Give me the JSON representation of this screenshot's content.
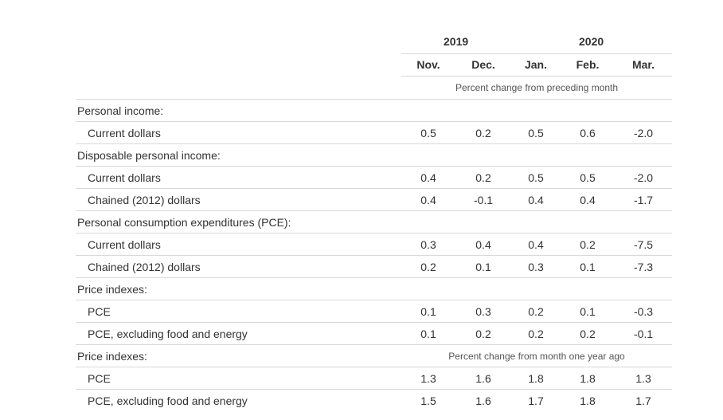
{
  "header": {
    "years": [
      "2019",
      "2020"
    ],
    "months": [
      "Nov.",
      "Dec.",
      "Jan.",
      "Feb.",
      "Mar."
    ],
    "note_monthly": "Percent change from preceding month",
    "note_yearly": "Percent change from month one year ago"
  },
  "rows": [
    {
      "label": "Personal income:",
      "type": "section",
      "values": []
    },
    {
      "label": "Current dollars",
      "type": "data",
      "values": [
        "0.5",
        "0.2",
        "0.5",
        "0.6",
        "-2.0"
      ]
    },
    {
      "label": "Disposable personal income:",
      "type": "section",
      "values": []
    },
    {
      "label": "Current dollars",
      "type": "data",
      "values": [
        "0.4",
        "0.2",
        "0.5",
        "0.5",
        "-2.0"
      ]
    },
    {
      "label": "Chained (2012) dollars",
      "type": "data",
      "values": [
        "0.4",
        "-0.1",
        "0.4",
        "0.4",
        "-1.7"
      ]
    },
    {
      "label": "Personal consumption expenditures (PCE):",
      "type": "section",
      "values": []
    },
    {
      "label": "Current dollars",
      "type": "data",
      "values": [
        "0.3",
        "0.4",
        "0.4",
        "0.2",
        "-7.5"
      ]
    },
    {
      "label": "Chained (2012) dollars",
      "type": "data",
      "values": [
        "0.2",
        "0.1",
        "0.3",
        "0.1",
        "-7.3"
      ]
    },
    {
      "label": "Price indexes:",
      "type": "section",
      "values": []
    },
    {
      "label": "PCE",
      "type": "data",
      "values": [
        "0.1",
        "0.3",
        "0.2",
        "0.1",
        "-0.3"
      ]
    },
    {
      "label": "PCE, excluding food and energy",
      "type": "data",
      "values": [
        "0.1",
        "0.2",
        "0.2",
        "0.2",
        "-0.1"
      ]
    },
    {
      "label": "Price indexes:",
      "type": "section",
      "values": []
    },
    {
      "label": "PCE",
      "type": "data",
      "values": [
        "1.3",
        "1.6",
        "1.8",
        "1.8",
        "1.3"
      ]
    },
    {
      "label": "PCE, excluding food and energy",
      "type": "data",
      "values": [
        "1.5",
        "1.6",
        "1.7",
        "1.8",
        "1.7"
      ]
    }
  ]
}
